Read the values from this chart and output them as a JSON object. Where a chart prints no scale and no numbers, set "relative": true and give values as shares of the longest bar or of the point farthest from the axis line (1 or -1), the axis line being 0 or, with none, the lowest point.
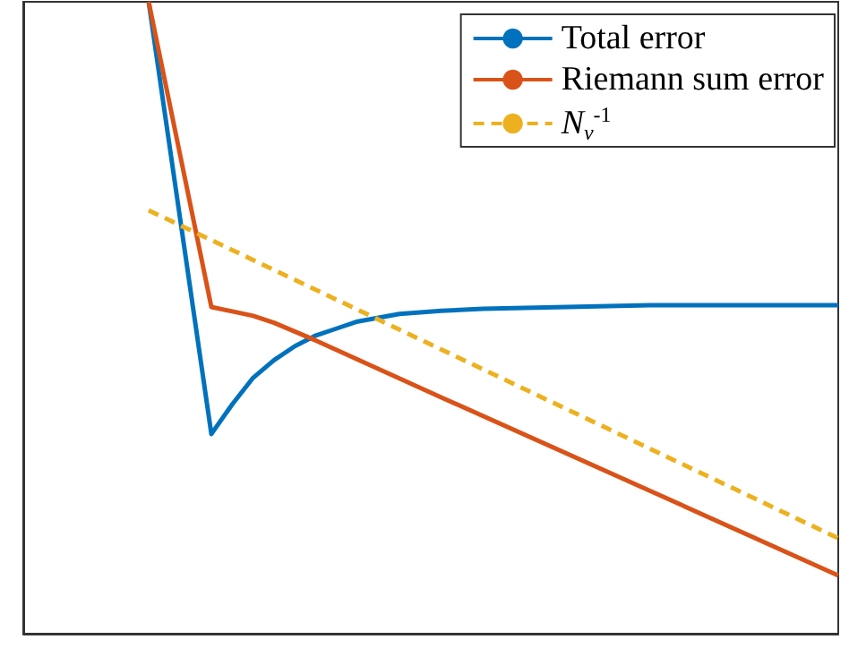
{
  "chart_data": {
    "type": "line",
    "relative": true,
    "categories": [
      null,
      null,
      null,
      null,
      null,
      null,
      null,
      null,
      null,
      null,
      null,
      null,
      null,
      null,
      null,
      null,
      null,
      null,
      null,
      null,
      null,
      null,
      null,
      null,
      null,
      null,
      null,
      null,
      null,
      null,
      null,
      null,
      null,
      null,
      null,
      null,
      null,
      null,
      null,
      null
    ],
    "series": [
      {
        "name": "Total error",
        "color": "#0072bd",
        "line_style": "solid",
        "values": [
          null,
          null,
          null,
          null,
          null,
          null,
          1.0,
          null,
          null,
          0.316,
          0.363,
          0.405,
          0.433,
          0.455,
          0.472,
          0.483,
          0.494,
          0.5,
          0.506,
          null,
          0.511,
          null,
          0.514,
          null,
          null,
          null,
          0.517,
          null,
          null,
          null,
          0.52,
          null,
          null,
          null,
          0.52,
          null,
          null,
          null,
          null,
          0.52
        ]
      },
      {
        "name": "Riemann sum error",
        "color": "#d95319",
        "line_style": "solid",
        "values": [
          null,
          null,
          null,
          null,
          null,
          null,
          1.0,
          null,
          null,
          0.517,
          null,
          0.503,
          0.492,
          null,
          0.464,
          null,
          null,
          null,
          null,
          null,
          0.374,
          null,
          null,
          null,
          null,
          null,
          null,
          null,
          null,
          null,
          0.226,
          null,
          null,
          null,
          null,
          null,
          null,
          null,
          null,
          0.092
        ]
      },
      {
        "name": "N$_{v}$$^{-1}$",
        "color": "#edb120",
        "line_style": "dashed",
        "values": [
          null,
          null,
          null,
          null,
          null,
          null,
          0.67,
          null,
          null,
          null,
          null,
          null,
          null,
          null,
          null,
          null,
          null,
          null,
          null,
          null,
          null,
          null,
          null,
          null,
          null,
          null,
          null,
          null,
          null,
          null,
          null,
          null,
          null,
          null,
          null,
          null,
          null,
          null,
          null,
          0.151
        ]
      }
    ],
    "legend": "top right",
    "grid": false,
    "marker": "none"
  }
}
